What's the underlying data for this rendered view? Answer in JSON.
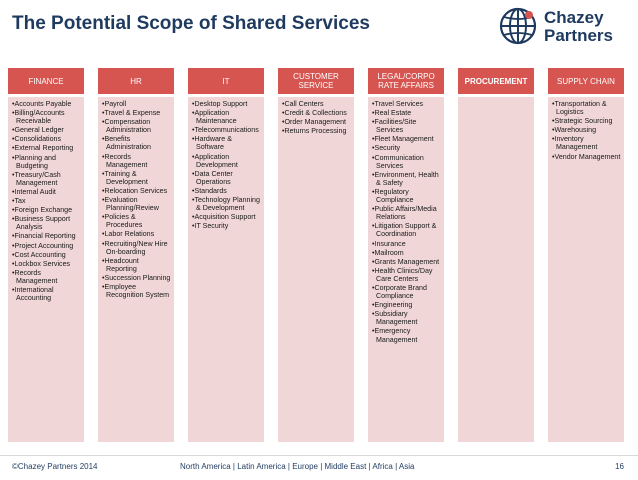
{
  "title": "The Potential Scope of Shared Services",
  "logo": {
    "line1": "Chazey",
    "line2": "Partners",
    "icon": "globe-icon"
  },
  "colors": {
    "header": "#d65550",
    "body": "#f0d6d6",
    "title": "#1f3a5f"
  },
  "columns": [
    {
      "heading": "FINANCE",
      "items": [
        "•Accounts Payable",
        "•Billing/Accounts Receivable",
        "•General Ledger",
        "•Consolidations",
        "•External Reporting",
        "•Planning and Budgeting",
        "•Treasury/Cash Management",
        "•Internal Audit",
        "•Tax",
        "•Foreign Exchange",
        "•Business Support Analysis",
        "•Financial Reporting",
        "•Project Accounting",
        "•Cost Accounting",
        "•Lockbox Services",
        "•Records Management",
        "•International Accounting"
      ]
    },
    {
      "heading": "HR",
      "items": [
        "•Payroll",
        "•Travel & Expense",
        "•Compensation Administration",
        "•Benefits Administration",
        "•Records Management",
        "•Training & Development",
        "•Relocation Services",
        "•Evaluation Planning/Review",
        "•Policies & Procedures",
        "•Labor Relations",
        "•Recruiting/New Hire On-boarding",
        "•Headcount Reporting",
        "•Succession Planning",
        "•Employee Recognition System"
      ]
    },
    {
      "heading": "IT",
      "items": [
        "•Desktop Support",
        "•Application Maintenance",
        "•Telecommunications",
        "•Hardware & Software",
        "•Application Development",
        "•Data Center Operations",
        "•Standards",
        "•Technology Planning & Development",
        "•Acquisition Support",
        "•IT Security"
      ]
    },
    {
      "heading": "CUSTOMER SERVICE",
      "items": [
        "•Call Centers",
        "•Credit & Collections",
        "•Order Management",
        "•Returns Processing"
      ]
    },
    {
      "heading": "LEGAL/CORPO RATE AFFAIRS",
      "items": [
        "•Travel Services",
        "•Real Estate",
        "•Facilities/Site Services",
        "•Fleet Management",
        "•Security",
        "•Communication Services",
        "•Environment, Health & Safety",
        "•Regulatory Compliance",
        "•Public Affairs/Media Relations",
        "•Litigation Support & Coordination",
        "•Insurance",
        "•Mailroom",
        "•Grants Management",
        "•Health Clinics/Day Care Centers",
        "•Corporate Brand Compliance",
        "•Engineering",
        "•Subsidiary Management",
        "•Emergency Management"
      ]
    },
    {
      "heading": "PROCUREMENT",
      "items": []
    },
    {
      "heading": "SUPPLY CHAIN",
      "items": [
        "•Transportation & Logistics",
        "•Strategic Sourcing",
        "•Warehousing",
        "•Inventory Management",
        "•Vendor Management"
      ]
    }
  ],
  "footer": {
    "left": "©Chazey Partners 2014",
    "middle": "North America | Latin America | Europe | Middle East | Africa | Asia",
    "page": "16"
  }
}
